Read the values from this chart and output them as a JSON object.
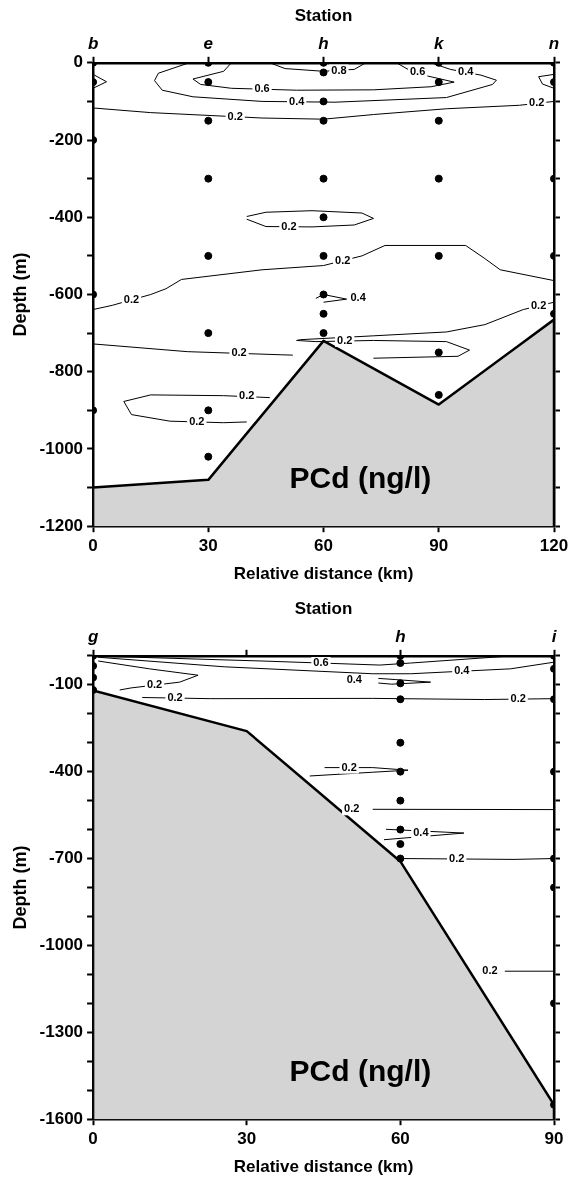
{
  "chart_data": [
    {
      "type": "scatter",
      "x2label": "Station",
      "xlabel": "Relative distance (km)",
      "ylabel": "Depth (m)",
      "grid": false,
      "legend": false,
      "xlim": [
        0,
        120
      ],
      "xticks": [
        0,
        30,
        60,
        90,
        120
      ],
      "ylim": [
        -1200,
        0
      ],
      "yticks": [
        0,
        {
          "value": -100,
          "label": null
        },
        -200,
        {
          "value": -300,
          "label": null
        },
        -400,
        {
          "value": -500,
          "label": null
        },
        -600,
        {
          "value": -700,
          "label": null
        },
        -800,
        {
          "value": -900,
          "label": null
        },
        -1000,
        {
          "value": -1100,
          "label": null
        },
        -1200
      ],
      "series": [
        {
          "type": "area",
          "color": "#d4d4d4",
          "x": [
            0,
            0,
            30,
            60,
            90,
            120,
            120
          ],
          "values": [
            -1200,
            -1100,
            -1080,
            -720,
            -885,
            -665,
            -1200
          ]
        },
        {
          "type": "scatter",
          "marker": "circle",
          "color": "#000000",
          "x": [
            0,
            0,
            0,
            0,
            0,
            30,
            30,
            30,
            30,
            30,
            30,
            30,
            30,
            60,
            60,
            60,
            60,
            60,
            60,
            60,
            60,
            60,
            60,
            90,
            90,
            90,
            90,
            90,
            90,
            90,
            120,
            120,
            120,
            120,
            120
          ],
          "values": [
            0,
            -50,
            -200,
            -600,
            -900,
            0,
            -50,
            -150,
            -300,
            -500,
            -700,
            -900,
            -1020,
            0,
            -25,
            -100,
            -150,
            -300,
            -400,
            -500,
            -600,
            -650,
            -700,
            0,
            -50,
            -150,
            -300,
            -500,
            -750,
            -860,
            0,
            -50,
            -300,
            -500,
            -650
          ]
        },
        {
          "type": "line",
          "marker": "none",
          "color": "#000000",
          "x": [
            46,
            50,
            60,
            68,
            71
          ],
          "values": [
            0,
            -15,
            -22,
            -17,
            0
          ]
        },
        {
          "type": "line",
          "marker": "none",
          "color": "#000000",
          "x": [
            36,
            34,
            26,
            28,
            36,
            53,
            73,
            88,
            94,
            87,
            82,
            79
          ],
          "values": [
            0,
            -22,
            -42,
            -56,
            -66,
            -71,
            -70,
            -62,
            -50,
            -34,
            -17,
            0
          ]
        },
        {
          "type": "line",
          "marker": "none",
          "color": "#000000",
          "x": [
            25,
            17,
            16,
            18,
            26,
            44,
            63,
            92,
            104,
            105,
            101,
            93,
            88
          ],
          "values": [
            0,
            -27,
            -46,
            -71,
            -88,
            -100,
            -102,
            -90,
            -56,
            -45,
            -32,
            -17,
            0
          ]
        },
        {
          "type": "line",
          "marker": "none",
          "color": "#000000",
          "x": [
            0,
            3.5,
            0
          ],
          "values": [
            -30,
            -49,
            -66
          ]
        },
        {
          "type": "line",
          "marker": "none",
          "color": "#000000",
          "x": [
            120,
            116,
            117,
            120
          ],
          "values": [
            -30,
            -36,
            -55,
            -66
          ]
        },
        {
          "type": "line",
          "marker": "none",
          "color": "#000000",
          "x": [
            0,
            15,
            44,
            60,
            73,
            92,
            111,
            120
          ],
          "values": [
            -117,
            -129,
            -143,
            -146,
            -134,
            -119,
            -110,
            -100
          ]
        },
        {
          "type": "line",
          "marker": "none",
          "color": "#000000",
          "x": [
            40,
            45,
            57,
            70,
            73
          ],
          "values": [
            -398,
            -387,
            -383,
            -389,
            -403
          ]
        },
        {
          "type": "line",
          "marker": "none",
          "color": "#000000",
          "x": [
            73,
            68,
            57,
            45,
            40
          ],
          "values": [
            -403,
            -420,
            -425,
            -424,
            -405
          ]
        },
        {
          "type": "line",
          "marker": "none",
          "color": "#000000",
          "x": [
            0,
            5,
            15,
            19,
            23,
            44,
            60,
            70,
            76,
            97,
            102,
            106,
            120
          ],
          "values": [
            -639,
            -628,
            -600,
            -585,
            -561,
            -536,
            -525,
            -500,
            -473,
            -473,
            -507,
            -536,
            -564
          ]
        },
        {
          "type": "line",
          "marker": "none",
          "color": "#000000",
          "x": [
            58,
            60,
            66,
            60
          ],
          "values": [
            -610,
            -600,
            -612,
            -620
          ]
        },
        {
          "type": "line",
          "marker": "none",
          "color": "#000000",
          "x": [
            120,
            112,
            102,
            92,
            73,
            54,
            53,
            58,
            73,
            92,
            98,
            95,
            73
          ],
          "values": [
            -620,
            -639,
            -678,
            -697,
            -707,
            -717,
            -719,
            -722,
            -719,
            -722,
            -744,
            -760,
            -765
          ]
        },
        {
          "type": "line",
          "marker": "none",
          "color": "#000000",
          "x": [
            0,
            24.5,
            48.7,
            52
          ],
          "values": [
            -728,
            -748,
            -756,
            -757
          ]
        },
        {
          "type": "line",
          "marker": "none",
          "color": "#000000",
          "x": [
            46,
            34,
            15,
            8,
            10,
            20,
            34,
            40
          ],
          "values": [
            -867,
            -862,
            -860,
            -877,
            -911,
            -928,
            -932,
            -930
          ]
        }
      ],
      "annotations": [
        {
          "text": "b",
          "x": 0,
          "y": 0
        },
        {
          "text": "e",
          "x": 30,
          "y": 0
        },
        {
          "text": "h",
          "x": 60,
          "y": 0
        },
        {
          "text": "k",
          "x": 90,
          "y": 0
        },
        {
          "text": "n",
          "x": 120,
          "y": 0
        },
        {
          "text": "0.8",
          "x": 64,
          "y": -20
        },
        {
          "text": "0.6",
          "x": 44,
          "y": -68
        },
        {
          "text": "0.6",
          "x": 84.5,
          "y": -25
        },
        {
          "text": "0.4",
          "x": 53,
          "y": -101
        },
        {
          "text": "0.4",
          "x": 97,
          "y": -24
        },
        {
          "text": "0.2",
          "x": 37,
          "y": -140
        },
        {
          "text": "0.2",
          "x": 115.5,
          "y": -105
        },
        {
          "text": "0.2",
          "x": 51,
          "y": -424
        },
        {
          "text": "0.2",
          "x": 65,
          "y": -512
        },
        {
          "text": "0.2",
          "x": 10,
          "y": -614
        },
        {
          "text": "0.4",
          "x": 69,
          "y": -608
        },
        {
          "text": "0.2",
          "x": 116,
          "y": -629
        },
        {
          "text": "0.2",
          "x": 65.5,
          "y": -720
        },
        {
          "text": "0.2",
          "x": 38,
          "y": -752
        },
        {
          "text": "0.2",
          "x": 40,
          "y": -864
        },
        {
          "text": "0.2",
          "x": 27,
          "y": -930
        },
        "PCd (ng/l)"
      ]
    },
    {
      "type": "scatter",
      "x2label": "Station",
      "xlabel": "Relative distance (km)",
      "ylabel": "Depth (m)",
      "grid": false,
      "legend": false,
      "xlim": [
        0,
        90
      ],
      "xticks": [
        0,
        30,
        60,
        90
      ],
      "ylim": [
        -1600,
        0
      ],
      "yticks": [
        {
          "value": 0,
          "label": null
        },
        -100,
        {
          "value": -200,
          "label": null
        },
        {
          "value": -300,
          "label": null
        },
        -400,
        {
          "value": -500,
          "label": null
        },
        {
          "value": -600,
          "label": null
        },
        -700,
        {
          "value": -800,
          "label": null
        },
        {
          "value": -900,
          "label": null
        },
        -1000,
        {
          "value": -1100,
          "label": null
        },
        {
          "value": -1200,
          "label": null
        },
        -1300,
        {
          "value": -1400,
          "label": null
        },
        {
          "value": -1500,
          "label": null
        },
        -1600
      ],
      "series": [
        {
          "type": "area",
          "color": "#d4d4d4",
          "x": [
            0,
            0,
            30,
            60,
            90,
            90
          ],
          "values": [
            -1600,
            -120,
            -260,
            -710,
            -1550,
            -1600
          ]
        },
        {
          "type": "scatter",
          "marker": "circle",
          "color": "#000000",
          "x": [
            0,
            0,
            0,
            0,
            60,
            60,
            60,
            60,
            60,
            60,
            60,
            60,
            60,
            60,
            90,
            90,
            90,
            90,
            90,
            90,
            90,
            90
          ],
          "values": [
            0,
            -35,
            -75,
            -118,
            0,
            -25,
            -95,
            -150,
            -300,
            -400,
            -500,
            -600,
            -650,
            -700,
            0,
            -45,
            -150,
            -400,
            -700,
            -800,
            -1200,
            -1550
          ]
        },
        {
          "type": "line",
          "marker": "none",
          "color": "#000000",
          "x": [
            1,
            33,
            56,
            62,
            82
          ],
          "values": [
            -1,
            -18,
            -32,
            -25,
            0
          ]
        },
        {
          "type": "line",
          "marker": "none",
          "color": "#000000",
          "x": [
            1,
            25.6,
            54.6,
            62,
            81.5,
            90
          ],
          "values": [
            -5,
            -38,
            -62,
            -62,
            -45,
            -22
          ]
        },
        {
          "type": "line",
          "marker": "none",
          "color": "#000000",
          "x": [
            55.7,
            59,
            65.9,
            58.3,
            55.7
          ],
          "values": [
            -78,
            -82,
            -91,
            -98,
            -94
          ]
        },
        {
          "type": "line",
          "marker": "none",
          "color": "#000000",
          "x": [
            1,
            11,
            20.5,
            16.9,
            7.4,
            5.2
          ],
          "values": [
            -18,
            -45,
            -67,
            -91,
            -111,
            -118
          ]
        },
        {
          "type": "line",
          "marker": "none",
          "color": "#000000",
          "x": [
            9.6,
            23,
            54.6,
            76.4,
            90
          ],
          "values": [
            -144,
            -148,
            -147,
            -151,
            -148
          ]
        },
        {
          "type": "line",
          "marker": "none",
          "color": "#000000",
          "x": [
            42.3,
            54.6,
            61.5,
            54.6,
            45.2
          ],
          "values": [
            -415,
            -402,
            -395,
            -386,
            -386
          ]
        },
        {
          "type": "line",
          "marker": "none",
          "color": "#000000",
          "x": [
            54.6,
            90
          ],
          "values": [
            -530,
            -531
          ]
        },
        {
          "type": "line",
          "marker": "none",
          "color": "#000000",
          "x": [
            57.2,
            72.4,
            56.8
          ],
          "values": [
            -599,
            -612,
            -635
          ]
        },
        {
          "type": "line",
          "marker": "none",
          "color": "#000000",
          "x": [
            60.1,
            82.2,
            90
          ],
          "values": [
            -700,
            -703,
            -700
          ]
        },
        {
          "type": "line",
          "marker": "none",
          "color": "#000000",
          "x": [
            80.4,
            90
          ],
          "values": [
            -1089,
            -1089
          ]
        }
      ],
      "annotations": [
        {
          "text": "g",
          "x": 0,
          "y": 0
        },
        {
          "text": "h",
          "x": 60,
          "y": 0
        },
        {
          "text": "i",
          "x": 90,
          "y": 0
        },
        {
          "text": "0.6",
          "x": 44.5,
          "y": -25
        },
        {
          "text": "0.4",
          "x": 72,
          "y": -53
        },
        {
          "text": "0.4",
          "x": 51,
          "y": -84
        },
        {
          "text": "0.2",
          "x": 12,
          "y": -101
        },
        {
          "text": "0.2",
          "x": 16,
          "y": -146
        },
        {
          "text": "0.2",
          "x": 83,
          "y": -149
        },
        {
          "text": "0.2",
          "x": 50,
          "y": -386
        },
        {
          "text": "0.2",
          "x": 50.5,
          "y": -530
        },
        {
          "text": "0.4",
          "x": 64,
          "y": -610
        },
        {
          "text": "0.2",
          "x": 71,
          "y": -701
        },
        {
          "text": "0.2",
          "x": 77.5,
          "y": -1089
        },
        "PCd (ng/l)"
      ]
    }
  ]
}
